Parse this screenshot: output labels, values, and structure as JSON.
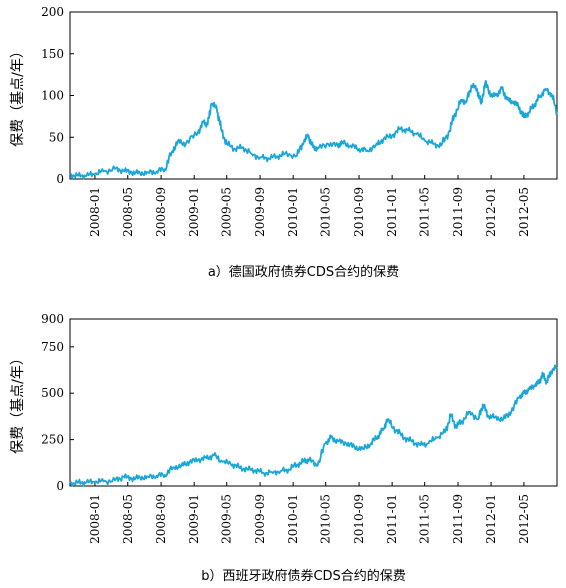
{
  "chart_data": [
    {
      "type": "line",
      "caption": "a）德国政府债券CDS合约的保费",
      "ylabel": "保费（基点/年）",
      "ylim": [
        0,
        200
      ],
      "yticks": [
        0,
        50,
        100,
        150,
        200
      ],
      "xlim": [
        "2007-10-01",
        "2012-08-31"
      ],
      "xticks": [
        "2008-01",
        "2008-05",
        "2008-09",
        "2009-01",
        "2009-05",
        "2009-09",
        "2010-01",
        "2010-05",
        "2010-09",
        "2011-01",
        "2011-05",
        "2011-09",
        "2012-01",
        "2012-05"
      ],
      "line_color": "#1aa7d8",
      "grid": false,
      "series": [
        {
          "x": [
            "2007-10-01",
            "2007-11-01",
            "2007-12-01",
            "2008-01-01",
            "2008-02-01",
            "2008-03-15",
            "2008-04-15",
            "2008-05-15",
            "2008-06-15",
            "2008-07-15",
            "2008-08-15",
            "2008-09-15",
            "2008-10-10",
            "2008-11-01",
            "2008-12-01",
            "2009-01-15",
            "2009-02-05",
            "2009-02-20",
            "2009-03-05",
            "2009-03-25",
            "2009-04-10",
            "2009-05-01",
            "2009-06-01",
            "2009-07-01",
            "2009-08-01",
            "2009-09-01",
            "2009-10-01",
            "2009-11-01",
            "2009-12-01",
            "2010-01-15",
            "2010-02-10",
            "2010-02-25",
            "2010-03-15",
            "2010-04-01",
            "2010-05-10",
            "2010-06-15",
            "2010-07-01",
            "2010-08-01",
            "2010-09-01",
            "2010-10-01",
            "2010-11-01",
            "2010-11-30",
            "2011-01-01",
            "2011-02-01",
            "2011-03-01",
            "2011-04-01",
            "2011-05-01",
            "2011-06-01",
            "2011-07-01",
            "2011-08-01",
            "2011-08-20",
            "2011-09-15",
            "2011-10-01",
            "2011-10-20",
            "2011-11-10",
            "2011-11-25",
            "2011-12-10",
            "2012-01-01",
            "2012-01-20",
            "2012-02-10",
            "2012-03-01",
            "2012-03-20",
            "2012-04-10",
            "2012-05-01",
            "2012-05-20",
            "2012-06-10",
            "2012-07-01",
            "2012-07-20",
            "2012-08-10",
            "2012-08-31"
          ],
          "values": [
            5,
            4,
            4,
            6,
            9,
            12,
            10,
            8,
            7,
            8,
            9,
            12,
            32,
            45,
            42,
            56,
            68,
            65,
            90,
            85,
            60,
            42,
            36,
            38,
            30,
            26,
            25,
            27,
            30,
            28,
            45,
            52,
            38,
            36,
            42,
            40,
            44,
            40,
            36,
            34,
            40,
            48,
            52,
            60,
            58,
            54,
            46,
            42,
            40,
            58,
            78,
            95,
            92,
            112,
            108,
            90,
            115,
            100,
            100,
            108,
            95,
            92,
            88,
            74,
            80,
            90,
            100,
            108,
            102,
            80
          ]
        }
      ]
    },
    {
      "type": "line",
      "caption": "b）西班牙政府债券CDS合约的保费",
      "ylabel": "保费（基点/年）",
      "ylim": [
        0,
        900
      ],
      "yticks": [
        0,
        250,
        500,
        750,
        900
      ],
      "xlim": [
        "2007-10-01",
        "2012-08-31"
      ],
      "xticks": [
        "2008-01",
        "2008-05",
        "2008-09",
        "2009-01",
        "2009-05",
        "2009-09",
        "2010-01",
        "2010-05",
        "2010-09",
        "2011-01",
        "2011-05",
        "2011-09",
        "2012-01",
        "2012-05"
      ],
      "line_color": "#1aa7d8",
      "grid": false,
      "series": [
        {
          "x": [
            "2007-10-01",
            "2007-11-01",
            "2007-12-01",
            "2008-01-01",
            "2008-02-01",
            "2008-03-15",
            "2008-04-15",
            "2008-05-15",
            "2008-06-15",
            "2008-07-15",
            "2008-08-15",
            "2008-09-15",
            "2008-10-15",
            "2008-11-15",
            "2008-12-15",
            "2009-01-15",
            "2009-02-15",
            "2009-03-15",
            "2009-04-15",
            "2009-05-15",
            "2009-06-15",
            "2009-07-15",
            "2009-08-15",
            "2009-09-15",
            "2009-10-15",
            "2009-11-15",
            "2009-12-15",
            "2010-01-15",
            "2010-02-10",
            "2010-03-01",
            "2010-04-01",
            "2010-05-01",
            "2010-05-20",
            "2010-06-15",
            "2010-07-15",
            "2010-08-15",
            "2010-09-15",
            "2010-10-15",
            "2010-11-10",
            "2010-11-30",
            "2010-12-15",
            "2011-01-15",
            "2011-02-15",
            "2011-03-15",
            "2011-04-15",
            "2011-05-15",
            "2011-06-15",
            "2011-07-15",
            "2011-08-05",
            "2011-08-25",
            "2011-09-15",
            "2011-10-15",
            "2011-11-15",
            "2011-12-01",
            "2011-12-20",
            "2012-01-15",
            "2012-02-15",
            "2012-03-15",
            "2012-04-15",
            "2012-05-01",
            "2012-05-20",
            "2012-06-10",
            "2012-06-25",
            "2012-07-10",
            "2012-07-25",
            "2012-08-10",
            "2012-08-31"
          ],
          "values": [
            15,
            18,
            20,
            22,
            25,
            30,
            50,
            40,
            45,
            50,
            55,
            60,
            100,
            110,
            130,
            140,
            150,
            165,
            130,
            120,
            100,
            90,
            85,
            70,
            75,
            80,
            90,
            115,
            135,
            140,
            110,
            230,
            260,
            240,
            230,
            210,
            200,
            230,
            270,
            310,
            360,
            300,
            260,
            240,
            220,
            230,
            260,
            290,
            380,
            320,
            350,
            400,
            360,
            440,
            380,
            370,
            360,
            400,
            480,
            500,
            520,
            540,
            560,
            600,
            560,
            620,
            640
          ]
        }
      ]
    }
  ]
}
